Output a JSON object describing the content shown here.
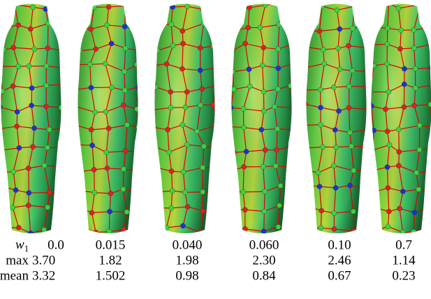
{
  "table": {
    "rows": [
      {
        "label": "w",
        "subscript": "1",
        "cells": [
          "0.0",
          "0.015",
          "0.040",
          "0.060",
          "0.10",
          "0.7"
        ]
      },
      {
        "label": "max",
        "cells": [
          "3.70",
          "1.82",
          "1.98",
          "2.30",
          "2.46",
          "1.14"
        ]
      },
      {
        "label": "mean",
        "cells": [
          "3.32",
          "1.502",
          "0.98",
          "0.84",
          "0.67",
          "0.23"
        ]
      }
    ]
  }
}
